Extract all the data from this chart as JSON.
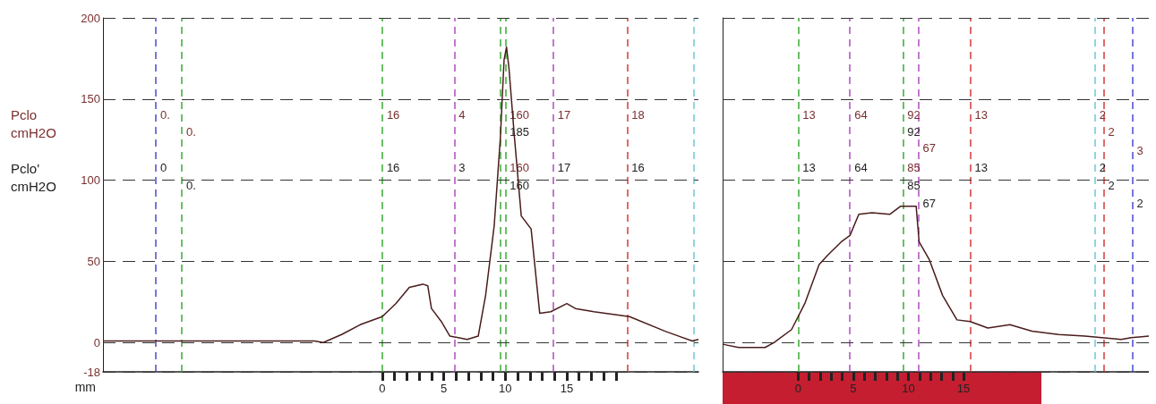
{
  "chart_data": [
    {
      "type": "line",
      "xlabel": "mm",
      "xlim": [
        -22.7,
        25.7
      ],
      "ylim": [
        -18,
        200
      ],
      "yticks": [
        -18,
        0,
        50,
        100,
        150,
        200
      ],
      "xticks": [
        0,
        {
          "value": 1,
          "label": null
        },
        {
          "value": 2,
          "label": null
        },
        {
          "value": 3,
          "label": null
        },
        {
          "value": 4,
          "label": null
        },
        5,
        {
          "value": 6,
          "label": null
        },
        {
          "value": 7,
          "label": null
        },
        {
          "value": 8,
          "label": null
        },
        {
          "value": 9,
          "label": null
        },
        10,
        {
          "value": 11,
          "label": null
        },
        {
          "value": 12,
          "label": null
        },
        {
          "value": 13,
          "label": null
        },
        {
          "value": 14,
          "label": null
        },
        15,
        {
          "value": 16,
          "label": null
        },
        {
          "value": 17,
          "label": null
        },
        {
          "value": 18,
          "label": null
        },
        {
          "value": 19,
          "label": null
        }
      ],
      "grid": "y",
      "line_style": "solid",
      "series": [
        {
          "color": "#4a1c1c",
          "x": [
            -22.7,
            -5.5,
            -4.8,
            -3.3,
            -1.8,
            0,
            1.1,
            2.2,
            3.3,
            3.7,
            4.0,
            4.8,
            5.5,
            6.9,
            7.8,
            8.4,
            9.1,
            9.6,
            9.9,
            10.1,
            10.3,
            10.75,
            11.3,
            12.1,
            12.8,
            13.7,
            15.0,
            15.7,
            17.2,
            20.1,
            23.0,
            25.2,
            25.7
          ],
          "values": [
            1,
            1,
            0,
            5,
            11,
            16,
            24,
            34,
            36,
            35,
            21,
            13,
            4,
            2,
            4,
            29,
            72,
            126,
            174,
            182,
            169,
            126,
            78,
            70,
            18,
            19,
            24,
            21,
            19,
            16,
            7,
            1,
            2
          ]
        }
      ],
      "ref_lines": [
        {
          "axis": "x",
          "value": -18.4,
          "color": "#4a4acf",
          "line_style": "dashed"
        },
        {
          "axis": "x",
          "value": -16.3,
          "color": "#3aaa35",
          "line_style": "dashed"
        },
        {
          "axis": "x",
          "value": 0,
          "color": "#3aaa35",
          "line_style": "dashed"
        },
        {
          "axis": "x",
          "value": 5.85,
          "color": "#b04cc0",
          "line_style": "dashed"
        },
        {
          "axis": "x",
          "value": 9.6,
          "color": "#3aaa35",
          "line_style": "dashed"
        },
        {
          "axis": "x",
          "value": 10.0,
          "color": "#3aaa35",
          "line_style": "dashed"
        },
        {
          "axis": "x",
          "value": 13.9,
          "color": "#b04cc0",
          "line_style": "dashed"
        },
        {
          "axis": "x",
          "value": 19.9,
          "color": "#d63a3a",
          "line_style": "dashed"
        },
        {
          "axis": "x",
          "value": 25.3,
          "color": "#6cc7d6",
          "line_style": "dashed"
        }
      ],
      "annotations": [
        "Pclo\ncmH2O",
        "Pclo'\ncmH2O",
        {
          "text": "0.",
          "x": -18.4,
          "y": 140
        },
        {
          "text": "0",
          "x": -18.4,
          "y": 108
        },
        {
          "text": "0.",
          "x": -16.3,
          "y": 130
        },
        {
          "text": "0.",
          "x": -16.3,
          "y": 97
        },
        {
          "text": "16",
          "x": 0,
          "y": 140
        },
        {
          "text": "16",
          "x": 0,
          "y": 108
        },
        {
          "text": "4",
          "x": 5.85,
          "y": 140
        },
        {
          "text": "3",
          "x": 5.85,
          "y": 108
        },
        {
          "text": "160",
          "x": 10.0,
          "y": 140
        },
        {
          "text": "185",
          "x": 10.0,
          "y": 130
        },
        {
          "text": "160",
          "x": 10.0,
          "y": 108
        },
        {
          "text": "160",
          "x": 10.0,
          "y": 97
        },
        {
          "text": "17",
          "x": 13.9,
          "y": 140
        },
        {
          "text": "17",
          "x": 13.9,
          "y": 108
        },
        {
          "text": "18",
          "x": 19.9,
          "y": 140
        },
        {
          "text": "16",
          "x": 19.9,
          "y": 108
        }
      ]
    },
    {
      "type": "line",
      "xlim": [
        -6.85,
        31.8
      ],
      "ylim": [
        -18,
        200
      ],
      "yticks": [
        -18,
        0,
        50,
        100,
        150,
        200
      ],
      "tick_labels": "x",
      "xticks": [
        0,
        {
          "value": 1,
          "label": null
        },
        {
          "value": 2,
          "label": null
        },
        {
          "value": 3,
          "label": null
        },
        {
          "value": 4,
          "label": null
        },
        5,
        {
          "value": 6,
          "label": null
        },
        {
          "value": 7,
          "label": null
        },
        {
          "value": 8,
          "label": null
        },
        {
          "value": 9,
          "label": null
        },
        10,
        {
          "value": 11,
          "label": null
        },
        {
          "value": 12,
          "label": null
        },
        {
          "value": 13,
          "label": null
        },
        {
          "value": 14,
          "label": null
        },
        15
      ],
      "grid": "y",
      "line_style": "solid",
      "series": [
        {
          "color": "#4a1c1c",
          "x": [
            -6.85,
            -5.4,
            -3.0,
            -2.2,
            -0.6,
            0.6,
            1.9,
            2.7,
            3.9,
            4.7,
            5.5,
            6.7,
            8.3,
            9.3,
            10.7,
            10.97,
            11.9,
            13.1,
            14.4,
            15.6,
            17.2,
            19.2,
            21.2,
            23.6,
            26.0,
            29.3,
            30.2,
            31.8
          ],
          "values": [
            -1,
            -3,
            -3,
            0,
            8,
            24,
            48,
            54,
            62,
            66,
            79,
            80,
            79,
            84,
            84,
            62,
            51,
            29,
            14,
            13,
            9,
            11,
            7,
            5,
            4,
            2,
            3,
            4
          ]
        }
      ],
      "ref_lines": [
        {
          "axis": "x",
          "value": 0,
          "color": "#3aaa35",
          "line_style": "dashed"
        },
        {
          "axis": "x",
          "value": 4.7,
          "color": "#b04cc0",
          "line_style": "dashed"
        },
        {
          "axis": "x",
          "value": 9.5,
          "color": "#3aaa35",
          "line_style": "dashed"
        },
        {
          "axis": "x",
          "value": 10.9,
          "color": "#b04cc0",
          "line_style": "dashed"
        },
        {
          "axis": "x",
          "value": 15.6,
          "color": "#d63a3a",
          "line_style": "dashed"
        },
        {
          "axis": "x",
          "value": 26.9,
          "color": "#6cc7d6",
          "line_style": "dashed"
        },
        {
          "axis": "x",
          "value": 27.7,
          "color": "#d63a3a",
          "line_style": "dashed"
        },
        {
          "axis": "x",
          "value": 30.3,
          "color": "#4a4acf",
          "line_style": "dashed"
        }
      ],
      "annotations": [
        {
          "text": "13",
          "x": 0,
          "y": 140
        },
        {
          "text": "13",
          "x": 0,
          "y": 108
        },
        {
          "text": "64",
          "x": 4.7,
          "y": 140
        },
        {
          "text": "64",
          "x": 4.7,
          "y": 108
        },
        {
          "text": "92",
          "x": 9.5,
          "y": 140
        },
        {
          "text": "92",
          "x": 9.5,
          "y": 130
        },
        {
          "text": "85",
          "x": 9.5,
          "y": 108
        },
        {
          "text": "85",
          "x": 9.5,
          "y": 97
        },
        {
          "text": "67",
          "x": 10.9,
          "y": 120
        },
        {
          "text": "67",
          "x": 10.9,
          "y": 86
        },
        {
          "text": "13",
          "x": 15.6,
          "y": 140
        },
        {
          "text": "13",
          "x": 15.6,
          "y": 108
        },
        {
          "text": "2",
          "x": 26.9,
          "y": 140
        },
        {
          "text": "2",
          "x": 26.9,
          "y": 108
        },
        {
          "text": "2",
          "x": 27.7,
          "y": 130
        },
        {
          "text": "2",
          "x": 27.7,
          "y": 97
        },
        {
          "text": "3",
          "x": 30.3,
          "y": 118
        },
        {
          "text": "2",
          "x": 30.3,
          "y": 86
        }
      ]
    }
  ]
}
